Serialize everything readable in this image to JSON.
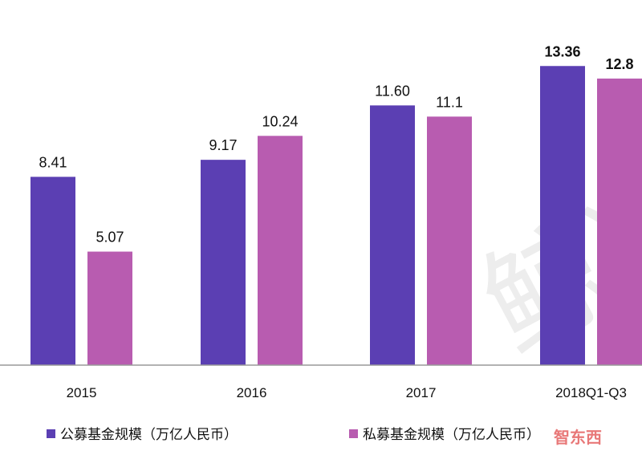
{
  "chart_data": {
    "type": "bar",
    "categories": [
      "2015",
      "2016",
      "2017",
      "2018Q1-Q3"
    ],
    "series": [
      {
        "name": "公募基金规模（万亿人民币）",
        "color": "#5b3fb3",
        "values": [
          8.41,
          9.17,
          11.6,
          13.36
        ],
        "labels": [
          "8.41",
          "9.17",
          "11.60",
          "13.36"
        ]
      },
      {
        "name": "私募基金规模（万亿人民币）",
        "color": "#b85cb0",
        "values": [
          5.07,
          10.24,
          11.1,
          12.8
        ],
        "labels": [
          "5.07",
          "10.24",
          "11.1",
          "12.8"
        ]
      }
    ],
    "ylim": [
      0,
      14
    ],
    "grid": false,
    "legend": "bottom"
  },
  "watermark": {
    "text": "鲸准",
    "color": "#bbbbbb"
  },
  "logo": {
    "text": "智东西",
    "color": "#e14b4b"
  }
}
